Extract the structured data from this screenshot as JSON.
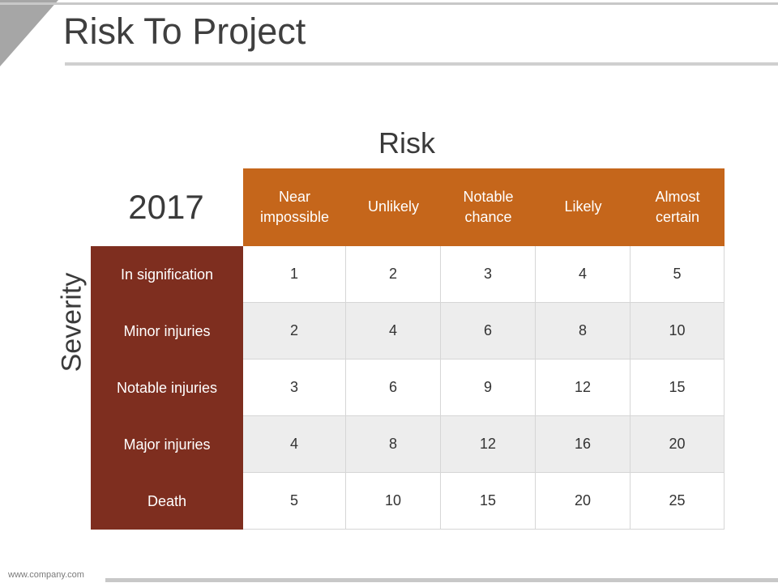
{
  "title": "Risk To Project",
  "risk_label": "Risk",
  "year_label": "2017",
  "severity_label": "Severity",
  "columns": [
    "Near\nimpossible",
    "Unlikely",
    "Notable\nchance",
    "Likely",
    "Almost\ncertain"
  ],
  "rows": [
    {
      "label": "In signification",
      "values": [
        "1",
        "2",
        "3",
        "4",
        "5"
      ]
    },
    {
      "label": "Minor injuries",
      "values": [
        "2",
        "4",
        "6",
        "8",
        "10"
      ]
    },
    {
      "label": "Notable injuries",
      "values": [
        "3",
        "6",
        "9",
        "12",
        "15"
      ]
    },
    {
      "label": "Major injuries",
      "values": [
        "4",
        "8",
        "12",
        "16",
        "20"
      ]
    },
    {
      "label": "Death",
      "values": [
        "5",
        "10",
        "15",
        "20",
        "25"
      ]
    }
  ],
  "footer": "www.company.com",
  "colors": {
    "column_header_bg": "#c5661b",
    "row_header_bg": "#7e2e1f",
    "alt_row_bg": "#ededed"
  }
}
